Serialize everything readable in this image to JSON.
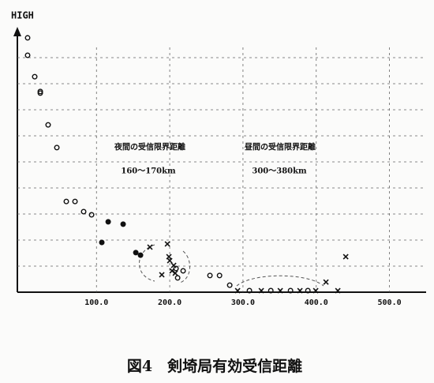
{
  "chart_data": {
    "type": "scatter",
    "title": "図4　剣埼局有効受信距離",
    "y_label": "HIGH",
    "annotations": [
      "夜間の受信限界距離",
      "160〜170km",
      "昼間の受信限界距離",
      "300〜380km"
    ],
    "xlim": [
      -8,
      550
    ],
    "ylim": [
      0,
      10
    ],
    "xticks": [
      {
        "value": 100,
        "label": "100.0"
      },
      {
        "value": 200,
        "label": "200.0"
      },
      {
        "value": 300,
        "label": "300.0"
      },
      {
        "value": 400,
        "label": "400.0"
      },
      {
        "value": 500,
        "label": "500.0"
      }
    ],
    "ygrid": [
      1,
      2,
      3,
      4,
      5,
      6,
      7,
      8,
      9
    ],
    "grid": true,
    "series": [
      {
        "marker": "circle-open",
        "color": "#111",
        "x": [
          6,
          6,
          15.7,
          23.3,
          23.3,
          34,
          45.9,
          58.8,
          70.7,
          82.5,
          93.3,
          208.6,
          210.8,
          218.3,
          254.9,
          268,
          281.9,
          308.8,
          338,
          364.9,
          388.6
        ],
        "values": [
          9.76,
          9.09,
          8.27,
          7.7,
          7.64,
          6.42,
          5.55,
          3.48,
          3.48,
          3.09,
          2.97,
          0.91,
          0.55,
          0.82,
          0.64,
          0.64,
          0.27,
          0.06,
          0.06,
          0.06,
          0.06
        ]
      },
      {
        "marker": "circle-filled",
        "color": "#111",
        "x": [
          107.3,
          116,
          136.4,
          153.7,
          160.1
        ],
        "values": [
          1.91,
          2.7,
          2.61,
          1.52,
          1.42
        ]
      },
      {
        "marker": "x",
        "color": "#111",
        "x": [
          173,
          189.2,
          196.8,
          198.9,
          200,
          203.2,
          205.4,
          207.5,
          292.7,
          325,
          350.9,
          377.8,
          399.3,
          413.3,
          429.5,
          440.3
        ],
        "values": [
          1.73,
          0.67,
          1.85,
          1.36,
          1.21,
          0.82,
          1.03,
          0.73,
          0.06,
          0.06,
          0.06,
          0.06,
          0.06,
          0.39,
          0.06,
          1.36
        ]
      }
    ]
  }
}
